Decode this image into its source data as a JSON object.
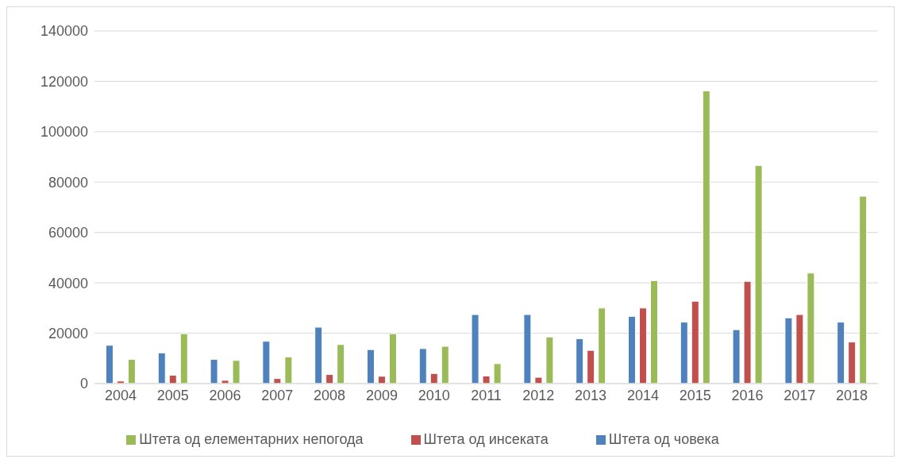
{
  "chart_data": {
    "type": "bar",
    "categories": [
      "2004",
      "2005",
      "2006",
      "2007",
      "2008",
      "2009",
      "2010",
      "2011",
      "2012",
      "2013",
      "2014",
      "2015",
      "2016",
      "2017",
      "2018"
    ],
    "series": [
      {
        "name": "Штета од човека",
        "color": "#4f81bd",
        "values": [
          15200,
          12200,
          9600,
          16800,
          22400,
          13500,
          13900,
          27400,
          27400,
          17800,
          26700,
          24400,
          21400,
          26100,
          24400
        ]
      },
      {
        "name": "Штета од инсеката",
        "color": "#c0504d",
        "values": [
          1000,
          3300,
          1300,
          2000,
          3600,
          2900,
          4000,
          3000,
          2500,
          13200,
          30000,
          32700,
          40600,
          27400,
          16500
        ]
      },
      {
        "name": "Штета од елементарних непогода",
        "color": "#9bbb59",
        "values": [
          9600,
          19800,
          9200,
          10600,
          15500,
          19800,
          14800,
          7900,
          18500,
          30000,
          40900,
          116200,
          86600,
          43900,
          74400
        ]
      }
    ],
    "ylim": [
      0,
      140000
    ],
    "yticks": [
      0,
      20000,
      40000,
      60000,
      80000,
      100000,
      120000,
      140000
    ],
    "grid": "y",
    "legend": "bottom"
  }
}
